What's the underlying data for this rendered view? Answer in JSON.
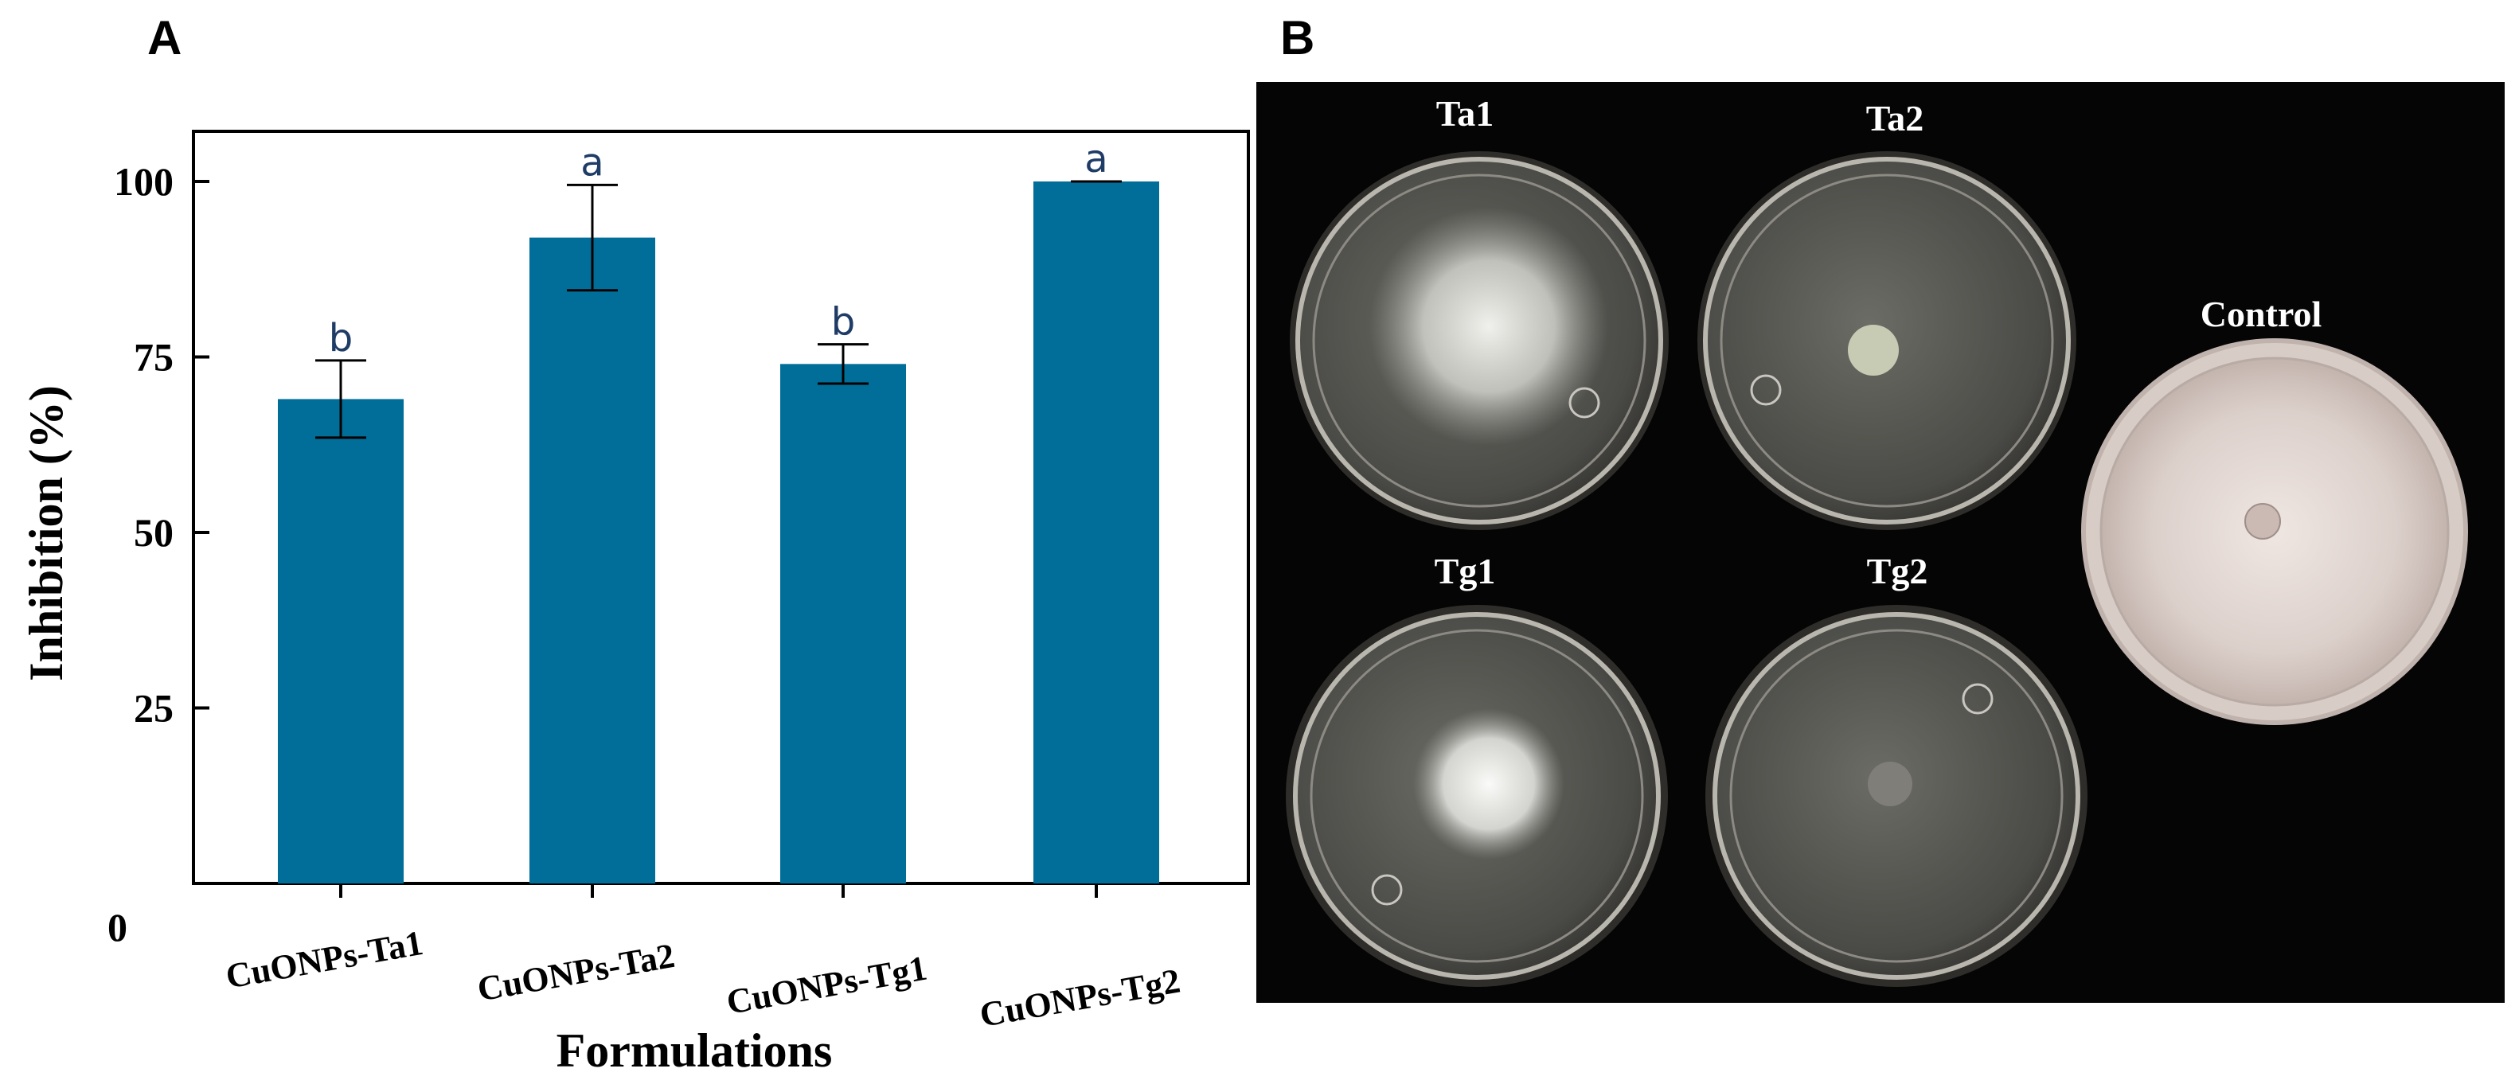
{
  "panels": {
    "a": "A",
    "b": "B"
  },
  "chart_data": {
    "type": "bar",
    "categories": [
      "CuONPs-Ta1",
      "CuONPs-Ta2",
      "CuONPs-Tg1",
      "CuONPs-Tg2"
    ],
    "values": [
      69,
      92,
      74,
      100
    ],
    "error": [
      5.5,
      7.5,
      2.8,
      0
    ],
    "significance": [
      "b",
      "a",
      "b",
      "a"
    ],
    "xlabel": "Formulations",
    "ylabel": "Inhibition (%)",
    "ylim": [
      0,
      100
    ],
    "yticks": [
      25,
      50,
      75,
      100
    ],
    "zero_label": "0",
    "bar_color": "#006e99",
    "grid": false
  },
  "photo": {
    "background": "#050505",
    "plates": [
      {
        "label": "Ta1",
        "growth": "diffuse fungal colony",
        "colony": "#d9d9d5"
      },
      {
        "label": "Ta2",
        "growth": "small plug",
        "colony": "#c8cbb4"
      },
      {
        "label": "Tg1",
        "growth": "diffuse fungal colony",
        "colony": "#e6e6e4"
      },
      {
        "label": "Tg2",
        "growth": "small plug",
        "colony": "#7f7e78"
      },
      {
        "label": "Control",
        "growth": "full coverage",
        "colony": "#dccfca"
      }
    ]
  }
}
